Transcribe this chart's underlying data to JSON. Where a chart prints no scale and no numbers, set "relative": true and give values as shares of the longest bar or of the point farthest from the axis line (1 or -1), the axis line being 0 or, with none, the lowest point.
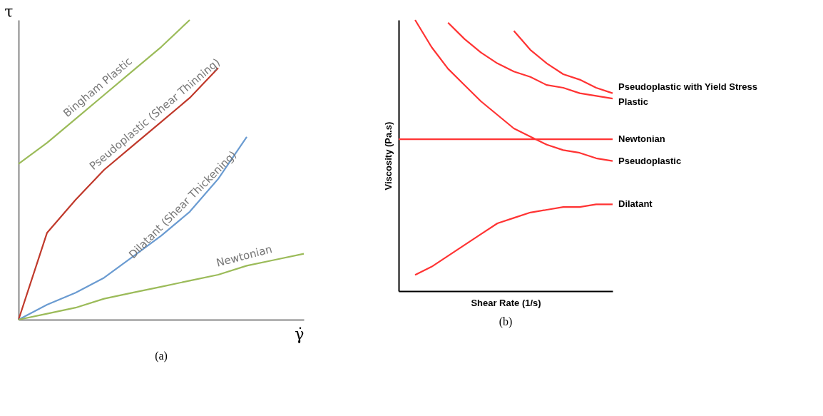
{
  "chart_data": [
    {
      "type": "line",
      "relative": true,
      "tick_labels": false,
      "legend": false,
      "grid": false,
      "title": "(a)",
      "xlabel": "γ̇",
      "ylabel": "τ",
      "categories": [
        null,
        null,
        null,
        null,
        null,
        null,
        null,
        null,
        null,
        null,
        null
      ],
      "series": [
        {
          "name": "Bingham Plastic",
          "color": "#9bbb59",
          "values": [
            0.52,
            0.59,
            0.67,
            0.75,
            0.83,
            0.91,
            1,
            null,
            null,
            null,
            null
          ]
        },
        {
          "name": "Pseudoplastic (Shear Thinning)",
          "color": "#c0392b",
          "values": [
            0,
            0.29,
            0.4,
            0.5,
            0.58,
            0.66,
            0.74,
            0.84,
            null,
            null,
            null
          ]
        },
        {
          "name": "Dilatant (Shear Thickening)",
          "color": "#6a9bd1",
          "values": [
            0,
            0.05,
            0.09,
            0.14,
            0.21,
            0.28,
            0.36,
            0.47,
            0.61,
            null,
            null
          ]
        },
        {
          "name": "Newtonian",
          "color": "#9bbb59",
          "values": [
            0,
            0.02,
            0.04,
            0.07,
            0.09,
            0.11,
            0.13,
            0.15,
            0.18,
            0.2,
            0.22
          ]
        }
      ]
    },
    {
      "type": "line",
      "relative": true,
      "tick_labels": false,
      "legend": false,
      "grid": false,
      "title": "(b)",
      "xlabel": "Shear Rate (1/s)",
      "ylabel": "Viscosity (Pa.s)",
      "categories": [
        null,
        null,
        null,
        null,
        null,
        null,
        null,
        null,
        null,
        null,
        null,
        null,
        null,
        null
      ],
      "series": [
        {
          "name": "Pseudoplastic with Yield Stress",
          "color": "#ff3333",
          "values": [
            null,
            null,
            null,
            null,
            null,
            null,
            null,
            0.96,
            0.89,
            0.84,
            0.8,
            0.78,
            0.75,
            0.73
          ]
        },
        {
          "name": "Plastic",
          "color": "#ff3333",
          "values": [
            null,
            null,
            null,
            0.99,
            0.93,
            0.88,
            0.84,
            0.81,
            0.79,
            0.76,
            0.75,
            0.73,
            0.72,
            0.71
          ]
        },
        {
          "name": "Newtonian",
          "color": "#ff3333",
          "values": [
            0.56,
            0.56,
            0.56,
            0.56,
            0.56,
            0.56,
            0.56,
            0.56,
            0.56,
            0.56,
            0.56,
            0.56,
            0.56,
            0.56
          ]
        },
        {
          "name": "Pseudoplastic",
          "color": "#ff3333",
          "values": [
            null,
            1,
            0.9,
            0.82,
            0.76,
            0.7,
            0.65,
            0.6,
            0.57,
            0.54,
            0.52,
            0.51,
            0.49,
            0.48
          ]
        },
        {
          "name": "Dilatant",
          "color": "#ff3333",
          "values": [
            null,
            0.06,
            0.09,
            0.13,
            0.17,
            0.21,
            0.25,
            0.27,
            0.29,
            0.3,
            0.31,
            0.31,
            0.32,
            0.32
          ]
        }
      ]
    }
  ]
}
